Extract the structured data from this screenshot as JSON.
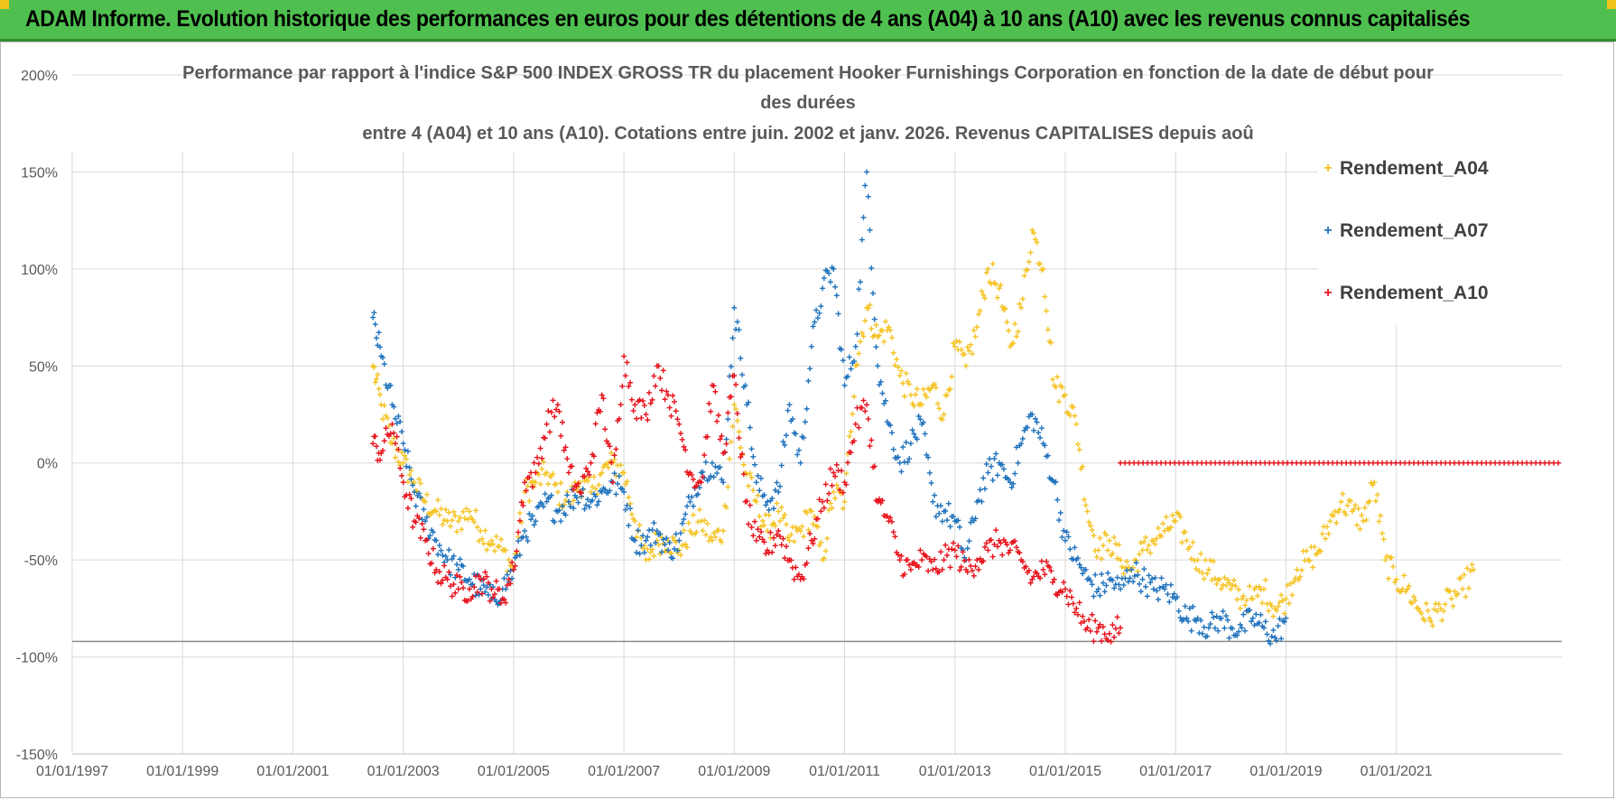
{
  "banner": {
    "title": "ADAM Informe. Evolution historique des performances en euros pour des détentions de 4 ans (A04) à 10 ans (A10) avec les revenus connus capitalisés"
  },
  "colors": {
    "banner_bg": "#4fc04f",
    "A04": "#f5c322",
    "A07": "#1f72bd",
    "A10": "#e8101a",
    "grid": "#d9d9d9",
    "text": "#595959"
  },
  "chart_data": {
    "type": "scatter",
    "title_line1": "Performance par rapport à l'indice S&P 500 INDEX GROSS TR  du placement Hooker Furnishings Corporation en fonction de la date de début pour",
    "title_line2": "des durées",
    "title_line3": "entre 4 (A04) et 10 ans (A10). Cotations entre juin. 2002 et janv. 2026. Revenus CAPITALISES depuis aoû",
    "xlabel": "",
    "ylabel": "",
    "xlim": [
      1997.0,
      2024.0
    ],
    "ylim": [
      -150,
      200
    ],
    "y_ticks": [
      200,
      150,
      100,
      50,
      0,
      -50,
      -100,
      -150
    ],
    "y_tick_labels": [
      "200%",
      "150%",
      "100%",
      "50%",
      "0%",
      "-50%",
      "-100%",
      "-150%"
    ],
    "x_ticks": [
      1997,
      1999,
      2001,
      2003,
      2005,
      2007,
      2009,
      2011,
      2013,
      2015,
      2017,
      2019,
      2021
    ],
    "x_tick_labels": [
      "01/01/1997",
      "01/01/1999",
      "01/01/2001",
      "01/01/2003",
      "01/01/2005",
      "01/01/2007",
      "01/01/2009",
      "01/01/2011",
      "01/01/2013",
      "01/01/2015",
      "01/01/2017",
      "01/01/2019",
      "01/01/2021"
    ],
    "reference_line": -92,
    "legend_position": "top-right",
    "series": [
      {
        "name": "Rendement_A04",
        "color": "#f5c322",
        "x": [
          2002.45,
          2002.6,
          2002.8,
          2003.0,
          2003.2,
          2003.4,
          2003.6,
          2003.8,
          2004.0,
          2004.2,
          2004.4,
          2004.6,
          2004.8,
          2005.0,
          2005.2,
          2005.4,
          2005.6,
          2005.8,
          2006.0,
          2006.2,
          2006.4,
          2006.6,
          2006.8,
          2007.0,
          2007.2,
          2007.4,
          2007.6,
          2007.8,
          2008.0,
          2008.2,
          2008.4,
          2008.6,
          2008.8,
          2009.0,
          2009.2,
          2009.4,
          2009.6,
          2009.8,
          2010.0,
          2010.2,
          2010.4,
          2010.6,
          2010.8,
          2011.0,
          2011.2,
          2011.4,
          2011.6,
          2011.8,
          2012.0,
          2012.2,
          2012.4,
          2012.6,
          2012.8,
          2013.0,
          2013.2,
          2013.4,
          2013.6,
          2013.8,
          2014.0,
          2014.2,
          2014.4,
          2014.6,
          2014.8,
          2015.0,
          2015.2,
          2015.4,
          2015.6,
          2015.8,
          2016.0,
          2016.2,
          2016.4,
          2016.6,
          2016.8,
          2017.0,
          2017.2,
          2017.4,
          2017.6,
          2017.8,
          2018.0,
          2018.2,
          2018.4,
          2018.6,
          2018.8,
          2019.0,
          2019.2,
          2019.4,
          2019.6,
          2019.8,
          2020.0,
          2020.2,
          2020.4,
          2020.6,
          2020.8,
          2021.0,
          2021.2,
          2021.4,
          2021.6,
          2021.8,
          2022.0,
          2022.2,
          2022.4
        ],
        "y": [
          50,
          30,
          10,
          0,
          -10,
          -20,
          -25,
          -30,
          -30,
          -25,
          -35,
          -40,
          -45,
          -55,
          -15,
          -10,
          -5,
          -15,
          -20,
          -10,
          -15,
          -5,
          0,
          -5,
          -30,
          -50,
          -40,
          -40,
          -45,
          -35,
          -30,
          -40,
          -35,
          30,
          -5,
          -20,
          -35,
          -25,
          -40,
          -35,
          -25,
          -50,
          -15,
          -20,
          50,
          80,
          65,
          70,
          45,
          35,
          30,
          40,
          25,
          60,
          50,
          70,
          100,
          90,
          60,
          80,
          120,
          100,
          40,
          35,
          20,
          -25,
          -45,
          -40,
          -50,
          -55,
          -45,
          -40,
          -35,
          -30,
          -40,
          -50,
          -55,
          -60,
          -65,
          -70,
          -70,
          -65,
          -75,
          -70,
          -55,
          -50,
          -45,
          -30,
          -20,
          -25,
          -30,
          -10,
          -50,
          -60,
          -65,
          -75,
          -80,
          -75,
          -70,
          -65,
          -55
        ]
      },
      {
        "name": "Rendement_A07",
        "color": "#1f72bd",
        "x": [
          2002.45,
          2002.6,
          2002.8,
          2003.0,
          2003.2,
          2003.4,
          2003.6,
          2003.8,
          2004.0,
          2004.2,
          2004.4,
          2004.6,
          2004.8,
          2005.0,
          2005.2,
          2005.4,
          2005.6,
          2005.8,
          2006.0,
          2006.2,
          2006.4,
          2006.6,
          2006.8,
          2007.0,
          2007.2,
          2007.4,
          2007.6,
          2007.8,
          2008.0,
          2008.2,
          2008.4,
          2008.6,
          2008.8,
          2009.0,
          2009.2,
          2009.4,
          2009.6,
          2009.8,
          2010.0,
          2010.2,
          2010.4,
          2010.6,
          2010.8,
          2011.0,
          2011.2,
          2011.4,
          2011.6,
          2011.8,
          2012.0,
          2012.2,
          2012.4,
          2012.6,
          2012.8,
          2013.0,
          2013.2,
          2013.4,
          2013.6,
          2013.8,
          2014.0,
          2014.2,
          2014.4,
          2014.6,
          2014.8,
          2015.0,
          2015.2,
          2015.4,
          2015.6,
          2015.8,
          2016.0,
          2016.2,
          2016.4,
          2016.6,
          2016.8,
          2017.0,
          2017.2,
          2017.4,
          2017.6,
          2017.8,
          2018.0,
          2018.2,
          2018.4,
          2018.6,
          2018.8,
          2019.0
        ],
        "y": [
          75,
          55,
          30,
          10,
          -15,
          -30,
          -40,
          -50,
          -55,
          -60,
          -65,
          -70,
          -65,
          -55,
          -35,
          -30,
          -20,
          -25,
          -20,
          -15,
          -20,
          -15,
          -10,
          -15,
          -40,
          -40,
          -35,
          -45,
          -40,
          -20,
          -5,
          0,
          -10,
          80,
          40,
          -10,
          -20,
          -15,
          30,
          0,
          60,
          90,
          100,
          40,
          60,
          150,
          50,
          20,
          0,
          10,
          20,
          -20,
          -25,
          -30,
          -50,
          -20,
          -5,
          0,
          -10,
          10,
          25,
          10,
          -10,
          -40,
          -50,
          -60,
          -65,
          -60,
          -65,
          -55,
          -60,
          -65,
          -65,
          -70,
          -80,
          -80,
          -85,
          -80,
          -85,
          -85,
          -80,
          -85,
          -90,
          -80
        ]
      },
      {
        "name": "Rendement_A10",
        "color": "#e8101a",
        "x": [
          2002.45,
          2002.6,
          2002.8,
          2003.0,
          2003.2,
          2003.4,
          2003.6,
          2003.8,
          2004.0,
          2004.2,
          2004.4,
          2004.6,
          2004.8,
          2005.0,
          2005.2,
          2005.4,
          2005.6,
          2005.8,
          2006.0,
          2006.2,
          2006.4,
          2006.6,
          2006.8,
          2007.0,
          2007.2,
          2007.4,
          2007.6,
          2007.8,
          2008.0,
          2008.2,
          2008.4,
          2008.6,
          2008.8,
          2009.0,
          2009.2,
          2009.4,
          2009.6,
          2009.8,
          2010.0,
          2010.2,
          2010.4,
          2010.6,
          2010.8,
          2011.0,
          2011.2,
          2011.4,
          2011.6,
          2011.8,
          2012.0,
          2012.2,
          2012.4,
          2012.6,
          2012.8,
          2013.0,
          2013.2,
          2013.4,
          2013.6,
          2013.8,
          2014.0,
          2014.2,
          2014.4,
          2014.6,
          2014.8,
          2015.0,
          2015.2,
          2015.4,
          2015.6,
          2015.8,
          2016.0
        ],
        "y": [
          10,
          5,
          20,
          -10,
          -30,
          -40,
          -55,
          -60,
          -65,
          -65,
          -60,
          -65,
          -70,
          -55,
          -10,
          -5,
          20,
          30,
          -5,
          -15,
          0,
          35,
          -10,
          55,
          30,
          25,
          50,
          35,
          20,
          -5,
          -10,
          40,
          5,
          45,
          -20,
          -40,
          -45,
          -35,
          -50,
          -60,
          -40,
          -20,
          -5,
          -10,
          20,
          30,
          -20,
          -30,
          -50,
          -55,
          -50,
          -55,
          -50,
          -45,
          -55,
          -50,
          -45,
          -40,
          -45,
          -50,
          -60,
          -55,
          -60,
          -65,
          -75,
          -85,
          -85,
          -88,
          -85
        ]
      }
    ],
    "flat_series_A10": {
      "name": "Rendement_A10",
      "from_x": 2016.0,
      "to_x": 2024.0,
      "y": 0
    }
  }
}
